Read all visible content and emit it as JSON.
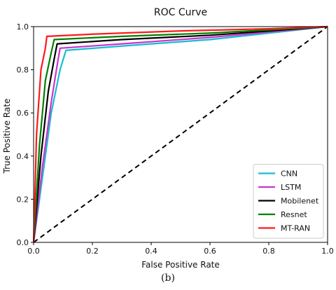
{
  "caption": "(b)",
  "chart_data": {
    "type": "line",
    "title": "ROC Curve",
    "xlabel": "False Positive Rate",
    "ylabel": "True Positive Rate",
    "xlim": [
      0.0,
      1.0
    ],
    "ylim": [
      0.0,
      1.0
    ],
    "xticks": [
      "0.0",
      "0.2",
      "0.4",
      "0.6",
      "0.8",
      "1.0"
    ],
    "yticks": [
      "0.0",
      "0.2",
      "0.4",
      "0.6",
      "0.8",
      "1.0"
    ],
    "grid": false,
    "legend_position": "lower-right",
    "series": [
      {
        "name": "CNN",
        "color": "#17becf",
        "x": [
          0.0,
          0.03,
          0.06,
          0.09,
          0.11,
          0.3,
          0.6,
          0.8,
          1.0
        ],
        "y": [
          0.0,
          0.3,
          0.6,
          0.8,
          0.89,
          0.91,
          0.94,
          0.97,
          1.0
        ]
      },
      {
        "name": "LSTM",
        "color": "#cc33cc",
        "x": [
          0.0,
          0.03,
          0.06,
          0.08,
          0.09,
          0.3,
          0.6,
          0.8,
          1.0
        ],
        "y": [
          0.0,
          0.35,
          0.65,
          0.82,
          0.9,
          0.92,
          0.95,
          0.975,
          1.0
        ]
      },
      {
        "name": "Mobilenet",
        "color": "#000000",
        "x": [
          0.0,
          0.025,
          0.05,
          0.07,
          0.08,
          0.3,
          0.6,
          0.8,
          1.0
        ],
        "y": [
          0.0,
          0.4,
          0.7,
          0.85,
          0.92,
          0.94,
          0.96,
          0.98,
          1.0
        ]
      },
      {
        "name": "Resnet",
        "color": "#008000",
        "x": [
          0.0,
          0.02,
          0.04,
          0.06,
          0.07,
          0.3,
          0.6,
          0.8,
          1.0
        ],
        "y": [
          0.0,
          0.45,
          0.75,
          0.88,
          0.94,
          0.955,
          0.97,
          0.985,
          1.0
        ]
      },
      {
        "name": "MT-RAN",
        "color": "#ff1a1a",
        "x": [
          0.0,
          0.01,
          0.025,
          0.04,
          0.045,
          0.2,
          0.5,
          0.8,
          1.0
        ],
        "y": [
          0.0,
          0.5,
          0.8,
          0.9,
          0.955,
          0.965,
          0.98,
          0.99,
          1.0
        ]
      }
    ],
    "reference_line": {
      "x": [
        0.0,
        1.0
      ],
      "y": [
        0.0,
        1.0
      ],
      "style": "dashed",
      "color": "#000000"
    }
  }
}
